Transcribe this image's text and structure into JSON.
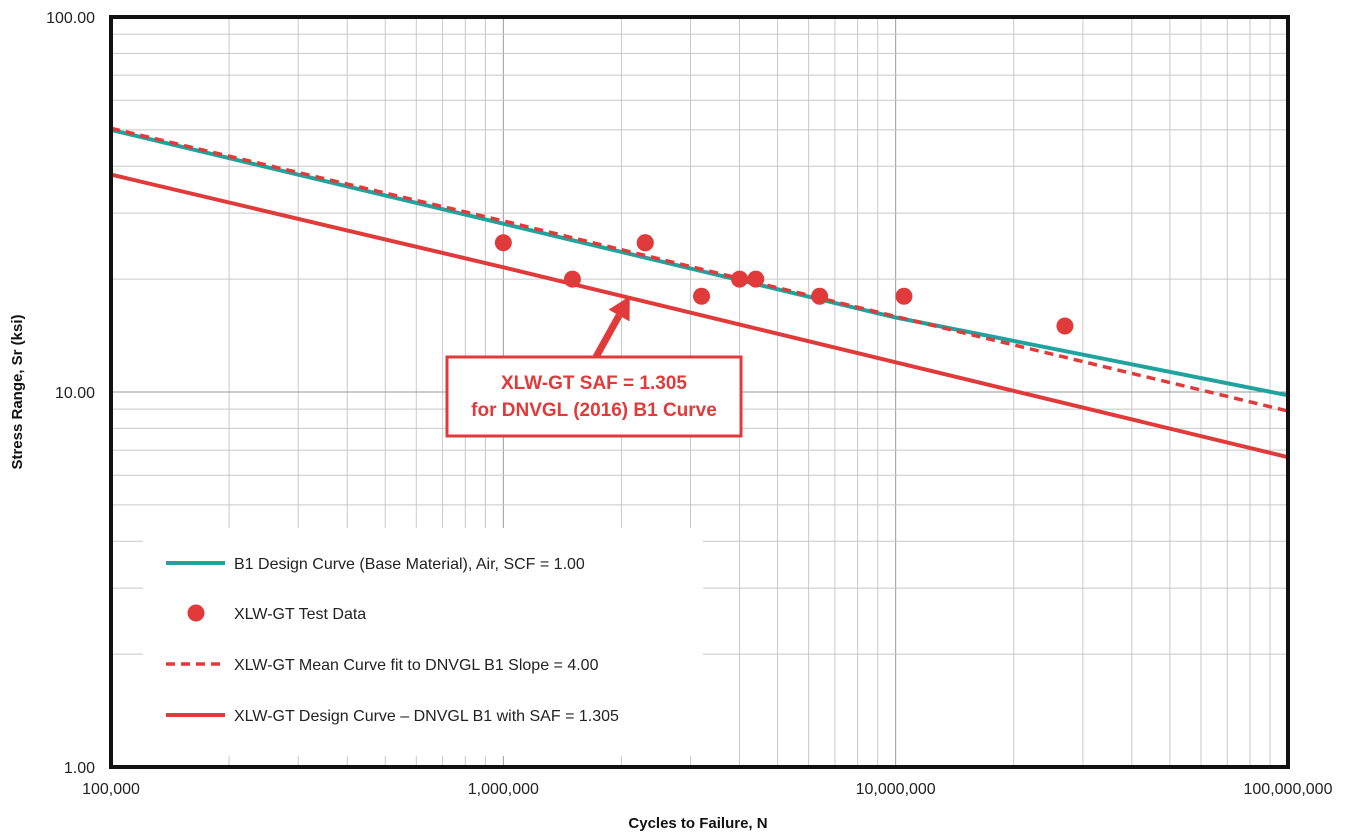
{
  "chart_data": {
    "type": "line",
    "title": "",
    "xlabel": "Cycles to Failure, N",
    "ylabel": "Stress Range, Sr (ksi)",
    "x_scale": "log",
    "y_scale": "log",
    "xlim": [
      100000,
      100000000
    ],
    "ylim": [
      1,
      100
    ],
    "grid": true,
    "x_tick_labels": [
      "100,000",
      "1,000,000",
      "10,000,000",
      "100,000,000"
    ],
    "y_tick_labels": [
      "1.00",
      "10.00",
      "100.00"
    ],
    "x_ticks": [
      100000,
      1000000,
      10000000,
      100000000
    ],
    "y_ticks": [
      1,
      10,
      100
    ],
    "legend_position": "bottom-left",
    "series": [
      {
        "name": "B1 Design Curve (Base Material), Air, SCF = 1.00",
        "kind": "line",
        "color": "#20a39e",
        "x": [
          100000,
          1000000,
          10000000,
          100000000
        ],
        "y": [
          50.0,
          28.1,
          15.8,
          9.8
        ]
      },
      {
        "name": "XLW-GT Test Data",
        "kind": "scatter",
        "color": "#e03a3a",
        "x": [
          1000000,
          1500000,
          2300000,
          2300000,
          3200000,
          4000000,
          4400000,
          6400000,
          10500000,
          27000000
        ],
        "y": [
          25.0,
          20.0,
          25.0,
          25.0,
          18.0,
          20.0,
          20.0,
          18.0,
          18.0,
          15.0
        ]
      },
      {
        "name": "XLW-GT Mean Curve fit to DNVGL B1 Slope = 4.00",
        "kind": "dashed-line",
        "color": "#e03a3a",
        "x": [
          100000,
          1000000,
          10000000,
          100000000
        ],
        "y": [
          50.5,
          28.6,
          15.9,
          8.9
        ]
      },
      {
        "name": "XLW-GT Design Curve – DNVGL B1 with SAF = 1.305",
        "kind": "line",
        "color": "#e03a3a",
        "x": [
          100000,
          1000000,
          10000000,
          100000000
        ],
        "y": [
          38.0,
          21.5,
          12.0,
          6.7
        ]
      }
    ],
    "annotation": {
      "lines": [
        "XLW-GT SAF = 1.305",
        "for DNVGL (2016) B1 Curve"
      ],
      "color": "#e03a3a",
      "arrow_target": {
        "x": 2100000,
        "y": 18.0
      }
    }
  }
}
